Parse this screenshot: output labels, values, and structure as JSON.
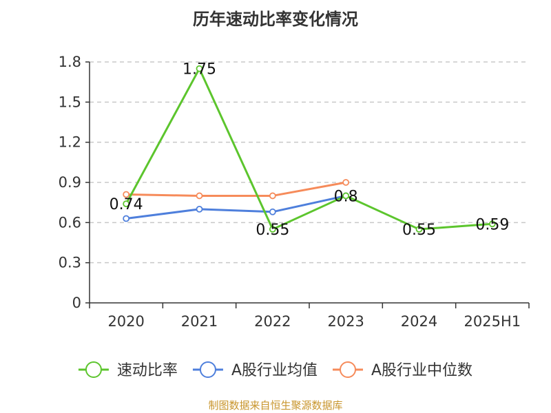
{
  "chart_data": {
    "type": "line",
    "title": "历年速动比率变化情况",
    "xlabel": "",
    "ylabel": "",
    "categories": [
      "2020",
      "2021",
      "2022",
      "2023",
      "2024",
      "2025H1"
    ],
    "yticks": [
      "0",
      "0.3",
      "0.6",
      "0.9",
      "1.2",
      "1.5",
      "1.8"
    ],
    "ylim": [
      0,
      1.8
    ],
    "grid": true,
    "legend_position": "bottom",
    "series": [
      {
        "name": "速动比率",
        "color": "#5cc52d",
        "values": [
          0.74,
          1.75,
          0.55,
          0.8,
          0.55,
          0.59
        ],
        "labels": [
          "0.74",
          "1.75",
          "0.55",
          "0.8",
          "0.55",
          "0.59"
        ]
      },
      {
        "name": "A股行业均值",
        "color": "#4e7fdc",
        "values": [
          0.63,
          0.7,
          0.68,
          0.8,
          null,
          null
        ]
      },
      {
        "name": "A股行业中位数",
        "color": "#f68b5a",
        "values": [
          0.81,
          0.8,
          0.8,
          0.9,
          null,
          null
        ]
      }
    ]
  },
  "source_note": "制图数据来自恒生聚源数据库"
}
